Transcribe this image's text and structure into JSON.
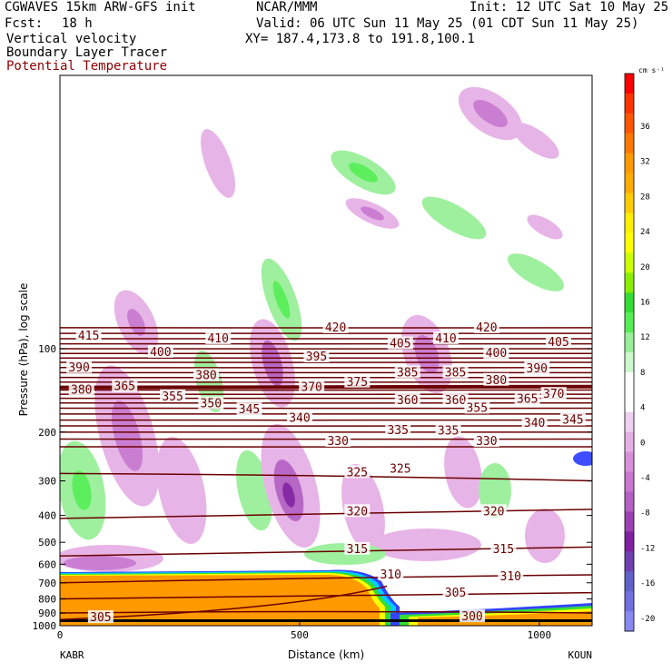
{
  "header": {
    "model": "CGWAVES 15km ARW-GFS init",
    "org": "NCAR/MMM",
    "init": "Init: 12 UTC Sat 10 May 25",
    "fcst_label": "Fcst:",
    "fcst_value": "18 h",
    "valid": "Valid: 06 UTC Sun 11 May 25 (01 CDT Sun 11 May 25)",
    "var1": "Vertical velocity",
    "var2": "Boundary Layer Tracer",
    "var3": "Potential Temperature",
    "xy": "XY= 187.4,173.8 to 191.8,100.1"
  },
  "colors": {
    "theta": "#6b0000",
    "var3_text": "#8b0000",
    "pbl_orange": "#ff9900",
    "pbl_edge_yellow": "#ffff00",
    "pbl_edge_green": "#33dd33",
    "pbl_edge_cyan": "#00ccff",
    "pbl_edge_blue": "#3344ff",
    "pos_w_green": "#8ef08e",
    "neg_w_pink": "#e6b0e6",
    "neg_w_purple": "#b46cc8"
  },
  "chart_data": {
    "type": "cross-section",
    "xlabel": "Distance (km)",
    "ylabel": "Pressure (hPa), log scale",
    "x_range": [
      0,
      1110
    ],
    "x_ticks": [
      0,
      500,
      1000
    ],
    "x_endpoints": [
      "KABR",
      "KOUN"
    ],
    "y_scale": "log",
    "y_ticks": [
      100,
      200,
      300,
      400,
      500,
      600,
      700,
      800,
      900,
      1000
    ],
    "colorbar": {
      "unit": "cm s⁻¹",
      "labels": [
        "36",
        "32",
        "28",
        "24",
        "20",
        "16",
        "12",
        "8",
        "4",
        "0",
        "-4",
        "-8",
        "-12",
        "-16",
        "-20"
      ],
      "colors": [
        "#ff0000",
        "#ff3300",
        "#ff5500",
        "#ff7700",
        "#ff9900",
        "#ffaa00",
        "#ffcc00",
        "#ffee00",
        "#ffff00",
        "#ccff00",
        "#88ee00",
        "#33dd33",
        "#55ee55",
        "#99f099",
        "#ccf7cc",
        "#ffffff",
        "#ffffff",
        "#f0d0f0",
        "#e6b0e6",
        "#d890dc",
        "#c878d0",
        "#b460c4",
        "#9c40b4",
        "#8020a0",
        "#7040b0",
        "#6060c8",
        "#7070e0",
        "#8888f0"
      ]
    },
    "theta_labels": [
      {
        "text": "415",
        "x": 60,
        "p": 90
      },
      {
        "text": "410",
        "x": 330,
        "p": 92
      },
      {
        "text": "420",
        "x": 575,
        "p": 84
      },
      {
        "text": "420",
        "x": 890,
        "p": 84
      },
      {
        "text": "405",
        "x": 710,
        "p": 96
      },
      {
        "text": "410",
        "x": 805,
        "p": 92
      },
      {
        "text": "405",
        "x": 1040,
        "p": 95
      },
      {
        "text": "400",
        "x": 210,
        "p": 103
      },
      {
        "text": "400",
        "x": 910,
        "p": 104
      },
      {
        "text": "395",
        "x": 535,
        "p": 107
      },
      {
        "text": "390",
        "x": 40,
        "p": 117
      },
      {
        "text": "390",
        "x": 995,
        "p": 118
      },
      {
        "text": "385",
        "x": 725,
        "p": 122
      },
      {
        "text": "385",
        "x": 825,
        "p": 122
      },
      {
        "text": "380",
        "x": 305,
        "p": 125
      },
      {
        "text": "380",
        "x": 910,
        "p": 130
      },
      {
        "text": "375",
        "x": 620,
        "p": 132
      },
      {
        "text": "370",
        "x": 525,
        "p": 138
      },
      {
        "text": "370",
        "x": 1030,
        "p": 146
      },
      {
        "text": "365",
        "x": 135,
        "p": 137
      },
      {
        "text": "380",
        "x": 45,
        "p": 141
      },
      {
        "text": "355",
        "x": 235,
        "p": 149
      },
      {
        "text": "360",
        "x": 725,
        "p": 154
      },
      {
        "text": "360",
        "x": 825,
        "p": 154
      },
      {
        "text": "365",
        "x": 975,
        "p": 152
      },
      {
        "text": "350",
        "x": 315,
        "p": 158
      },
      {
        "text": "355",
        "x": 870,
        "p": 164
      },
      {
        "text": "345",
        "x": 395,
        "p": 166
      },
      {
        "text": "340",
        "x": 500,
        "p": 178
      },
      {
        "text": "345",
        "x": 1070,
        "p": 181
      },
      {
        "text": "340",
        "x": 990,
        "p": 186
      },
      {
        "text": "335",
        "x": 705,
        "p": 197
      },
      {
        "text": "335",
        "x": 810,
        "p": 198
      },
      {
        "text": "330",
        "x": 580,
        "p": 216
      },
      {
        "text": "330",
        "x": 890,
        "p": 216
      },
      {
        "text": "325",
        "x": 620,
        "p": 280
      },
      {
        "text": "325",
        "x": 710,
        "p": 272
      },
      {
        "text": "320",
        "x": 620,
        "p": 387
      },
      {
        "text": "320",
        "x": 905,
        "p": 387
      },
      {
        "text": "315",
        "x": 620,
        "p": 530
      },
      {
        "text": "315",
        "x": 925,
        "p": 530
      },
      {
        "text": "310",
        "x": 690,
        "p": 655
      },
      {
        "text": "310",
        "x": 940,
        "p": 664
      },
      {
        "text": "305",
        "x": 825,
        "p": 762
      },
      {
        "text": "305",
        "x": 85,
        "p": 935
      },
      {
        "text": "300",
        "x": 860,
        "p": 928
      }
    ]
  }
}
